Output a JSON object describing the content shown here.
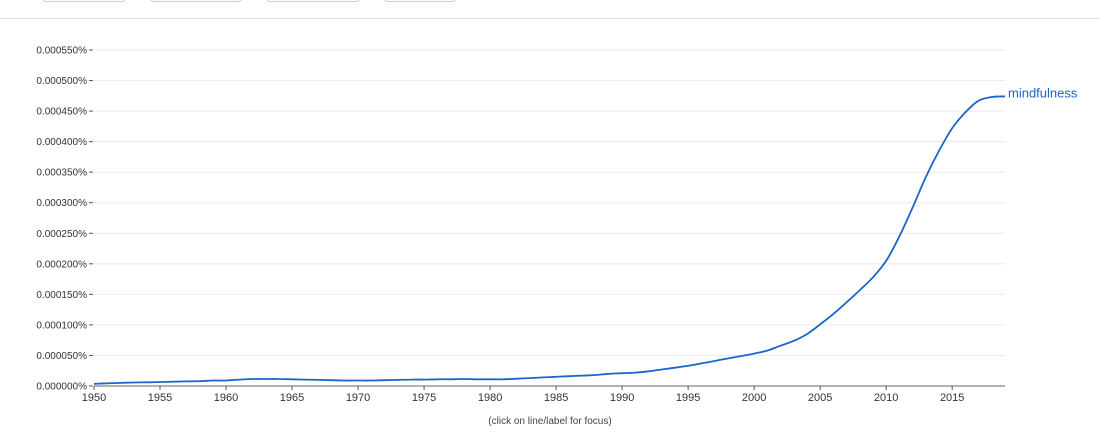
{
  "tabs": [
    "",
    "",
    "",
    ""
  ],
  "chart_data": {
    "type": "line",
    "x": [
      1950,
      1951,
      1952,
      1953,
      1954,
      1955,
      1956,
      1957,
      1958,
      1959,
      1960,
      1961,
      1962,
      1963,
      1964,
      1965,
      1966,
      1967,
      1968,
      1969,
      1970,
      1971,
      1972,
      1973,
      1974,
      1975,
      1976,
      1977,
      1978,
      1979,
      1980,
      1981,
      1982,
      1983,
      1984,
      1985,
      1986,
      1987,
      1988,
      1989,
      1990,
      1991,
      1992,
      1993,
      1994,
      1995,
      1996,
      1997,
      1998,
      1999,
      2000,
      2001,
      2002,
      2003,
      2004,
      2005,
      2006,
      2007,
      2008,
      2009,
      2010,
      2011,
      2012,
      2013,
      2014,
      2015,
      2016,
      2017,
      2018,
      2019
    ],
    "series": [
      {
        "name": "mindfulness",
        "color": "#1a66cc",
        "values": [
          3.5e-06,
          4.5e-06,
          5e-06,
          5.8e-06,
          6e-06,
          6.5e-06,
          7e-06,
          7.5e-06,
          8e-06,
          9e-06,
          9e-06,
          1.05e-05,
          1.15e-05,
          1.15e-05,
          1.15e-05,
          1.1e-05,
          1.05e-05,
          1e-05,
          9.5e-06,
          9e-06,
          9e-06,
          9e-06,
          9.5e-06,
          1e-05,
          1.05e-05,
          1.05e-05,
          1.1e-05,
          1.1e-05,
          1.15e-05,
          1.1e-05,
          1.1e-05,
          1.1e-05,
          1.2e-05,
          1.3e-05,
          1.4e-05,
          1.5e-05,
          1.6e-05,
          1.7e-05,
          1.8e-05,
          2e-05,
          2.1e-05,
          2.2e-05,
          2.4e-05,
          2.7e-05,
          3e-05,
          3.3e-05,
          3.7e-05,
          4.1e-05,
          4.5e-05,
          4.9e-05,
          5.3e-05,
          5.8e-05,
          6.6e-05,
          7.4e-05,
          8.5e-05,
          0.000101,
          0.000118,
          0.000137,
          0.000157,
          0.000178,
          0.000205,
          0.000245,
          0.000292,
          0.000342,
          0.000385,
          0.000422,
          0.000448,
          0.000467,
          0.000473,
          0.000474
        ]
      }
    ],
    "y_ticks": [
      "0.000000%",
      "0.000050%",
      "0.000100%",
      "0.000150%",
      "0.000200%",
      "0.000250%",
      "0.000300%",
      "0.000350%",
      "0.000400%",
      "0.000450%",
      "0.000500%",
      "0.000550%"
    ],
    "x_ticks": [
      "1950",
      "1955",
      "1960",
      "1965",
      "1970",
      "1975",
      "1980",
      "1985",
      "1990",
      "1995",
      "2000",
      "2005",
      "2010",
      "2015"
    ],
    "ylim": [
      0,
      0.00055
    ],
    "xlim": [
      1950,
      2019
    ],
    "grid": true,
    "title": "",
    "xlabel": "",
    "ylabel": ""
  },
  "footnote": "(click on line/label for focus)"
}
